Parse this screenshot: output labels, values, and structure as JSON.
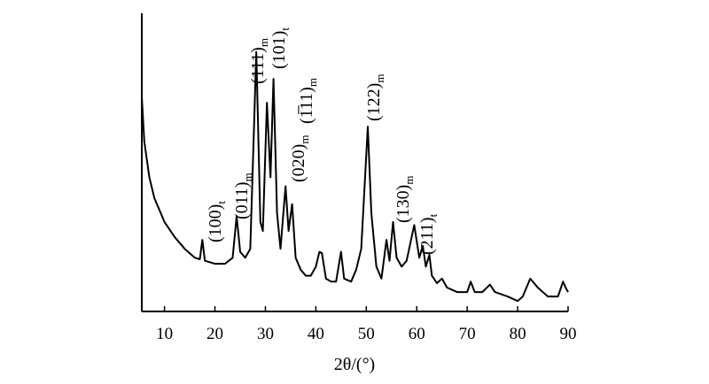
{
  "chart_data": {
    "type": "line",
    "xlabel": "2θ/(°)",
    "xlim": [
      5.5,
      90
    ],
    "xticks": [
      10,
      20,
      30,
      40,
      50,
      60,
      70,
      80,
      90
    ],
    "ylim": [
      0,
      100
    ],
    "x": [
      5.5,
      6,
      7,
      8,
      10,
      12,
      14,
      16,
      17,
      17.5,
      18,
      20,
      22,
      23.5,
      24.3,
      25,
      26,
      27,
      28.2,
      29,
      29.5,
      30.3,
      31,
      31.6,
      32.3,
      33,
      34,
      34.6,
      35.3,
      36,
      37,
      38,
      39,
      40,
      40.7,
      41.2,
      42,
      43,
      44,
      45,
      45.6,
      47,
      48,
      49,
      50.3,
      51,
      52,
      53,
      54,
      54.6,
      55.3,
      56,
      57,
      58,
      59.5,
      60.5,
      61.2,
      61.8,
      62.5,
      63,
      64,
      65,
      66,
      68,
      70,
      70.7,
      71.5,
      73,
      74.5,
      75.5,
      78,
      80,
      81,
      82.5,
      84,
      86,
      88,
      89,
      89.5,
      90
    ],
    "series": [
      {
        "color": "#000000",
        "values": [
          72,
          57,
          45,
          38,
          30,
          25,
          21,
          18,
          17.5,
          24,
          17,
          16,
          16,
          18,
          32,
          20,
          18,
          21,
          87,
          30,
          27,
          70,
          45,
          78,
          33,
          21,
          42,
          27,
          36,
          18,
          14,
          12,
          12,
          15,
          20,
          19.6,
          11,
          10,
          10,
          20,
          11,
          10,
          14,
          21,
          62,
          33,
          15,
          11,
          24,
          17,
          30,
          18,
          15,
          17,
          29,
          18,
          22,
          15,
          19,
          12,
          9.5,
          11,
          8,
          6.5,
          6.5,
          10,
          6.5,
          6.5,
          9,
          6.5,
          5,
          3.5,
          5,
          11,
          8,
          5,
          5,
          10,
          8,
          6.5
        ]
      }
    ],
    "annotations": [
      {
        "label": "(100)",
        "sub": "t"
      },
      {
        "label": "(011)",
        "sub": "m"
      },
      {
        "label": "(111)",
        "sub": "m"
      },
      {
        "label": "(101)",
        "sub": "t"
      },
      {
        "label": "(1̅11)",
        "sub": "m"
      },
      {
        "label": "(020)",
        "sub": "m"
      },
      {
        "label": "(122)",
        "sub": "m"
      },
      {
        "label": "(130)",
        "sub": "m"
      },
      {
        "label": "(211)",
        "sub": "t"
      }
    ]
  }
}
